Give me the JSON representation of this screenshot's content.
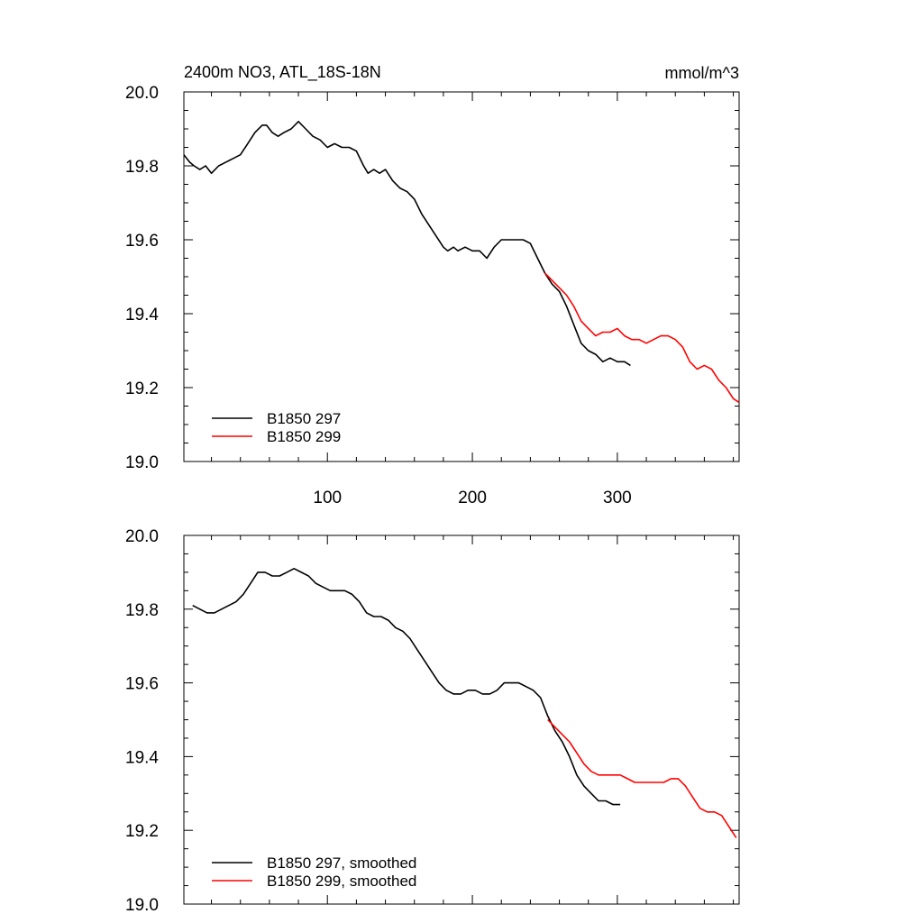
{
  "chart_data": [
    {
      "type": "line",
      "title": "2400m NO3, ATL_18S-18N",
      "units": "mmol/m^3",
      "xlim": [
        1,
        384
      ],
      "ylim": [
        19.0,
        20.0
      ],
      "x_ticks": [
        100,
        200,
        300
      ],
      "x_tick_labels": [
        "100",
        "200",
        "300"
      ],
      "y_ticks": [
        19.0,
        19.2,
        19.4,
        19.6,
        19.8,
        20.0
      ],
      "y_tick_labels": [
        "19.0",
        "19.2",
        "19.4",
        "19.6",
        "19.8",
        "20.0"
      ],
      "legend": "bottom-left",
      "series": [
        {
          "name": "B1850 297",
          "color": "#000000",
          "x": [
            1,
            5,
            8,
            12,
            16,
            20,
            25,
            30,
            35,
            40,
            45,
            50,
            55,
            58,
            62,
            66,
            70,
            75,
            80,
            85,
            90,
            95,
            100,
            105,
            110,
            115,
            120,
            125,
            128,
            132,
            136,
            140,
            145,
            150,
            155,
            160,
            165,
            170,
            175,
            180,
            183,
            187,
            190,
            195,
            200,
            205,
            210,
            215,
            220,
            225,
            230,
            235,
            240,
            245,
            250,
            255,
            260,
            265,
            270,
            275,
            280,
            285,
            290,
            295,
            300,
            305,
            309
          ],
          "y": [
            19.83,
            19.81,
            19.8,
            19.79,
            19.8,
            19.78,
            19.8,
            19.81,
            19.82,
            19.83,
            19.86,
            19.89,
            19.91,
            19.91,
            19.89,
            19.88,
            19.89,
            19.9,
            19.92,
            19.9,
            19.88,
            19.87,
            19.85,
            19.86,
            19.85,
            19.85,
            19.84,
            19.8,
            19.78,
            19.79,
            19.78,
            19.79,
            19.76,
            19.74,
            19.73,
            19.71,
            19.67,
            19.64,
            19.61,
            19.58,
            19.57,
            19.58,
            19.57,
            19.58,
            19.57,
            19.57,
            19.55,
            19.58,
            19.6,
            19.6,
            19.6,
            19.6,
            19.59,
            19.55,
            19.51,
            19.48,
            19.46,
            19.42,
            19.37,
            19.32,
            19.3,
            19.29,
            19.27,
            19.28,
            19.27,
            19.27,
            19.26
          ]
        },
        {
          "name": "B1850 299",
          "color": "#ff0000",
          "x": [
            250,
            255,
            260,
            265,
            270,
            275,
            280,
            285,
            290,
            295,
            300,
            305,
            310,
            315,
            320,
            325,
            330,
            335,
            340,
            345,
            350,
            355,
            360,
            365,
            370,
            375,
            380,
            384
          ],
          "y": [
            19.51,
            19.49,
            19.47,
            19.45,
            19.42,
            19.38,
            19.36,
            19.34,
            19.35,
            19.35,
            19.36,
            19.34,
            19.33,
            19.33,
            19.32,
            19.33,
            19.34,
            19.34,
            19.33,
            19.31,
            19.27,
            19.25,
            19.26,
            19.25,
            19.22,
            19.2,
            19.17,
            19.16
          ]
        }
      ]
    },
    {
      "type": "line",
      "title": "",
      "xlim": [
        1,
        384
      ],
      "ylim": [
        19.0,
        20.0
      ],
      "x_ticks": [
        100,
        200,
        300
      ],
      "x_tick_labels": [],
      "y_ticks": [
        19.0,
        19.2,
        19.4,
        19.6,
        19.8,
        20.0
      ],
      "y_tick_labels": [
        "19.0",
        "19.2",
        "19.4",
        "19.6",
        "19.8",
        "20.0"
      ],
      "legend": "bottom-left",
      "series": [
        {
          "name": "B1850 297, smoothed",
          "color": "#000000",
          "x": [
            7,
            12,
            17,
            22,
            27,
            32,
            37,
            42,
            47,
            52,
            57,
            62,
            67,
            72,
            77,
            82,
            87,
            92,
            97,
            102,
            107,
            112,
            117,
            122,
            127,
            132,
            137,
            142,
            147,
            152,
            157,
            162,
            167,
            172,
            177,
            182,
            187,
            192,
            197,
            202,
            207,
            212,
            217,
            222,
            227,
            232,
            237,
            242,
            247,
            252,
            257,
            262,
            267,
            272,
            277,
            282,
            287,
            292,
            297,
            302
          ],
          "y": [
            19.81,
            19.8,
            19.79,
            19.79,
            19.8,
            19.81,
            19.82,
            19.84,
            19.87,
            19.9,
            19.9,
            19.89,
            19.89,
            19.9,
            19.91,
            19.9,
            19.89,
            19.87,
            19.86,
            19.85,
            19.85,
            19.85,
            19.84,
            19.82,
            19.79,
            19.78,
            19.78,
            19.77,
            19.75,
            19.74,
            19.72,
            19.69,
            19.66,
            19.63,
            19.6,
            19.58,
            19.57,
            19.57,
            19.58,
            19.58,
            19.57,
            19.57,
            19.58,
            19.6,
            19.6,
            19.6,
            19.59,
            19.58,
            19.56,
            19.51,
            19.47,
            19.44,
            19.4,
            19.35,
            19.32,
            19.3,
            19.28,
            19.28,
            19.27,
            19.27
          ]
        },
        {
          "name": "B1850 299, smoothed",
          "color": "#ff0000",
          "x": [
            252,
            257,
            262,
            267,
            272,
            277,
            282,
            287,
            292,
            297,
            302,
            307,
            312,
            317,
            322,
            327,
            332,
            337,
            342,
            347,
            352,
            357,
            362,
            367,
            372,
            377,
            382
          ],
          "y": [
            19.5,
            19.48,
            19.46,
            19.44,
            19.41,
            19.38,
            19.36,
            19.35,
            19.35,
            19.35,
            19.35,
            19.34,
            19.33,
            19.33,
            19.33,
            19.33,
            19.33,
            19.34,
            19.34,
            19.32,
            19.29,
            19.26,
            19.25,
            19.25,
            19.24,
            19.21,
            19.18
          ]
        }
      ]
    }
  ]
}
